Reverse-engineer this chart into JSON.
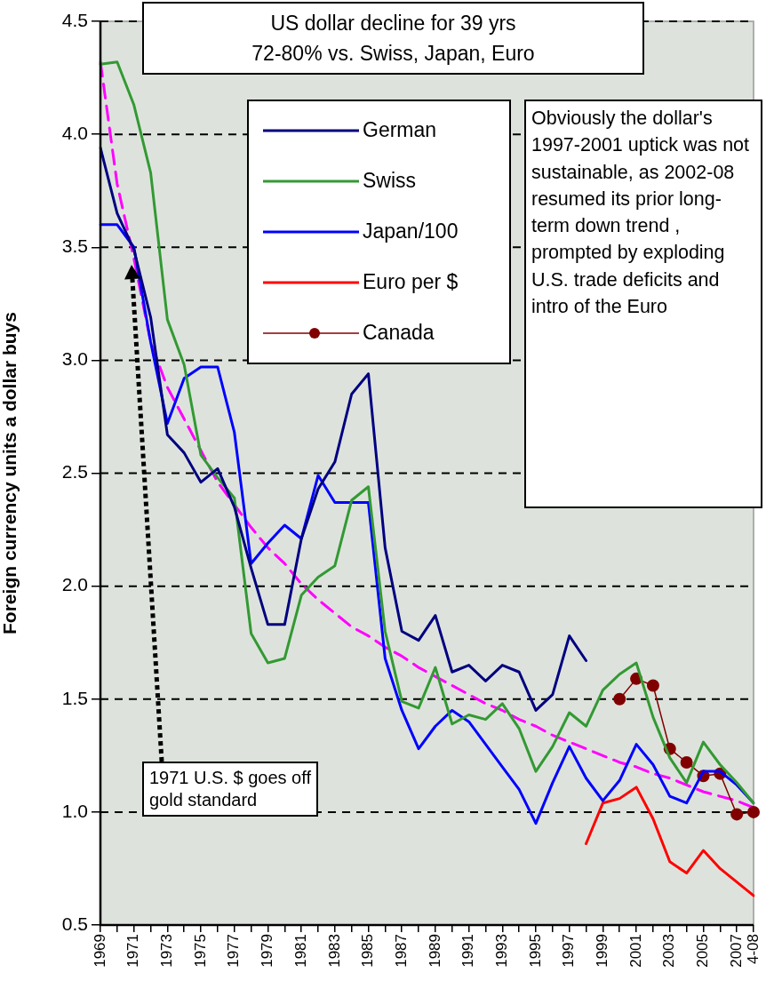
{
  "chart_data": {
    "type": "line",
    "title": "US dollar decline for 39 yrs",
    "subtitle": "72-80% vs. Swiss, Japan, Euro",
    "ylabel": "Foreign currency units a dollar buys",
    "categories": [
      "1969",
      null,
      "1971",
      null,
      "1973",
      null,
      "1975",
      null,
      "1977",
      null,
      "1979",
      null,
      "1981",
      null,
      "1983",
      null,
      "1985",
      null,
      "1987",
      null,
      "1989",
      null,
      "1991",
      null,
      "1993",
      null,
      "1995",
      null,
      "1997",
      null,
      "1999",
      null,
      "2001",
      null,
      "2003",
      null,
      "2005",
      null,
      "2007",
      "4-08"
    ],
    "series": [
      {
        "name": "German",
        "color": "#000080",
        "values": [
          3.94,
          3.65,
          3.49,
          3.19,
          2.67,
          2.59,
          2.46,
          2.52,
          2.35,
          2.08,
          1.83,
          1.83,
          2.21,
          2.43,
          2.55,
          2.85,
          2.94,
          2.17,
          1.8,
          1.76,
          1.87,
          1.62,
          1.65,
          1.58,
          1.65,
          1.62,
          1.45,
          1.52,
          1.78,
          1.67,
          null,
          null,
          null,
          null,
          null,
          null,
          null,
          null,
          null,
          null
        ]
      },
      {
        "name": "Swiss",
        "color": "#339933",
        "values": [
          4.31,
          4.32,
          4.13,
          3.83,
          3.18,
          2.98,
          2.58,
          2.48,
          2.39,
          1.79,
          1.66,
          1.68,
          1.96,
          2.04,
          2.09,
          2.38,
          2.44,
          1.8,
          1.49,
          1.46,
          1.64,
          1.39,
          1.43,
          1.41,
          1.48,
          1.37,
          1.18,
          1.29,
          1.44,
          1.38,
          1.54,
          1.61,
          1.66,
          1.42,
          1.24,
          1.13,
          1.31,
          1.21,
          1.13,
          1.04
        ]
      },
      {
        "name": "Japan/100",
        "color": "#0000ff",
        "values": [
          3.6,
          3.6,
          3.5,
          3.08,
          2.72,
          2.92,
          2.97,
          2.97,
          2.68,
          2.1,
          2.19,
          2.27,
          2.21,
          2.49,
          2.37,
          2.37,
          2.37,
          1.68,
          1.45,
          1.28,
          1.38,
          1.45,
          1.4,
          1.3,
          1.2,
          1.1,
          0.95,
          1.13,
          1.29,
          1.15,
          1.05,
          1.14,
          1.3,
          1.21,
          1.07,
          1.04,
          1.18,
          1.18,
          1.12,
          1.04
        ]
      },
      {
        "name": "Euro per $",
        "color": "#ff0000",
        "values": [
          null,
          null,
          null,
          null,
          null,
          null,
          null,
          null,
          null,
          null,
          null,
          null,
          null,
          null,
          null,
          null,
          null,
          null,
          null,
          null,
          null,
          null,
          null,
          null,
          null,
          null,
          null,
          null,
          null,
          0.86,
          1.04,
          1.06,
          1.11,
          0.97,
          0.78,
          0.73,
          0.83,
          0.75,
          0.69,
          0.63
        ]
      },
      {
        "name": "Canada",
        "color": "#800000",
        "marker": "circle",
        "values": [
          null,
          null,
          null,
          null,
          null,
          null,
          null,
          null,
          null,
          null,
          null,
          null,
          null,
          null,
          null,
          null,
          null,
          null,
          null,
          null,
          null,
          null,
          null,
          null,
          null,
          null,
          null,
          null,
          null,
          null,
          null,
          1.5,
          1.59,
          1.56,
          1.28,
          1.22,
          1.16,
          1.17,
          0.99,
          1.0
        ]
      },
      {
        "type": "line",
        "color": "#ff00ff",
        "line_style": "dashed",
        "values": [
          4.32,
          3.78,
          3.45,
          3.08,
          2.88,
          2.74,
          2.6,
          2.46,
          2.36,
          2.26,
          2.17,
          2.1,
          2.01,
          1.94,
          1.88,
          1.82,
          1.78,
          1.73,
          1.69,
          1.64,
          1.6,
          1.56,
          1.52,
          1.48,
          1.45,
          1.41,
          1.38,
          1.34,
          1.31,
          1.28,
          1.25,
          1.22,
          1.2,
          1.17,
          1.15,
          1.12,
          1.09,
          1.07,
          1.05,
          1.02
        ]
      }
    ],
    "ylim": [
      0.5,
      4.5
    ],
    "yticks": [
      0.5,
      {
        "value": 1,
        "label": "1.0"
      },
      1.5,
      {
        "value": 2,
        "label": "2.0"
      },
      2.5,
      {
        "value": 3,
        "label": "3.0"
      },
      3.5,
      {
        "value": 4,
        "label": "4.0"
      },
      4.5
    ],
    "grid": "y",
    "legend": "top",
    "marker": "none",
    "line_style": "solid",
    "annotations": [
      "Obviously the dollar's 1997-2001 uptick was not sustainable, as 2002-08 resumed its prior long-term down trend , prompted by exploding U.S. trade deficits and intro of the Euro",
      "1971 U.S. $ goes off gold standard"
    ]
  }
}
